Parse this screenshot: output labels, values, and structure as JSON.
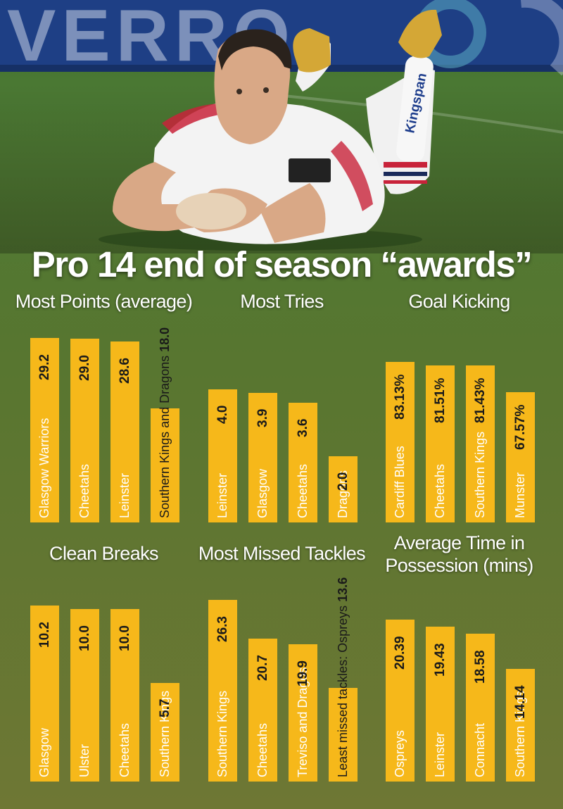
{
  "title": "Pro 14 end of season “awards”",
  "colors": {
    "bar": "#f6b81a",
    "background_top": "#53722f",
    "background_bottom": "#6f7734",
    "banner": "#1e3f85"
  },
  "photo": {
    "icon": "rugby-player-photo",
    "banner_text": "VERRO",
    "sock_text": "Kingspan"
  },
  "chart_data": [
    {
      "type": "bar",
      "title": "Most Points (average)",
      "categories": [
        "Glasgow Warriors",
        "Cheetahs",
        "Leinster",
        "Southern Kings and Dragons"
      ],
      "values": [
        29.2,
        29.0,
        28.6,
        18.0
      ],
      "value_labels": [
        "29.2",
        "29.0",
        "28.6",
        "18.0"
      ],
      "ylim": [
        0,
        30.5
      ]
    },
    {
      "type": "bar",
      "title": "Most Tries",
      "categories": [
        "Leinster",
        "Glasgow",
        "Cheetahs",
        "Dragons"
      ],
      "values": [
        4.0,
        3.9,
        3.6,
        2.0
      ],
      "value_labels": [
        "4.0",
        "3.9",
        "3.6",
        "2.0"
      ],
      "ylim": [
        0,
        5.8
      ]
    },
    {
      "type": "bar",
      "title": "Goal Kicking",
      "categories": [
        "Cardiff Blues",
        "Cheetahs",
        "Southern Kings",
        "Munster"
      ],
      "values": [
        83.13,
        81.51,
        81.43,
        67.57
      ],
      "value_labels": [
        "83.13%",
        "81.51%",
        "81.43%",
        "67.57%"
      ],
      "ylim": [
        0,
        100
      ]
    },
    {
      "type": "bar",
      "title": "Clean Breaks",
      "categories": [
        "Glasgow",
        "Ulster",
        "Cheetahs",
        "Southern Kings"
      ],
      "values": [
        10.2,
        10.0,
        10.0,
        5.7
      ],
      "value_labels": [
        "10.2",
        "10.0",
        "10.0",
        "5.7"
      ],
      "ylim": [
        0,
        10.6
      ]
    },
    {
      "type": "bar",
      "title": "Most Missed Tackles",
      "categories": [
        "Southern Kings",
        "Cheetahs",
        "Treviso and Dragos",
        ""
      ],
      "values": [
        26.3,
        20.7,
        19.9,
        13.6
      ],
      "value_labels": [
        "26.3",
        "20.7",
        "19.9",
        "13.6"
      ],
      "extra_label": "Least missed tackles: Ospreys",
      "ylim": [
        0,
        26.5
      ]
    },
    {
      "type": "bar",
      "title": "Average Time in Possession (mins)",
      "categories": [
        "Ospreys",
        "Leinster",
        "Connacht",
        "Southern Kings"
      ],
      "values": [
        20.39,
        19.43,
        18.58,
        14.14
      ],
      "value_labels": [
        "20.39",
        "19.43",
        "18.58",
        "14.14"
      ],
      "ylim": [
        0,
        23
      ]
    }
  ]
}
